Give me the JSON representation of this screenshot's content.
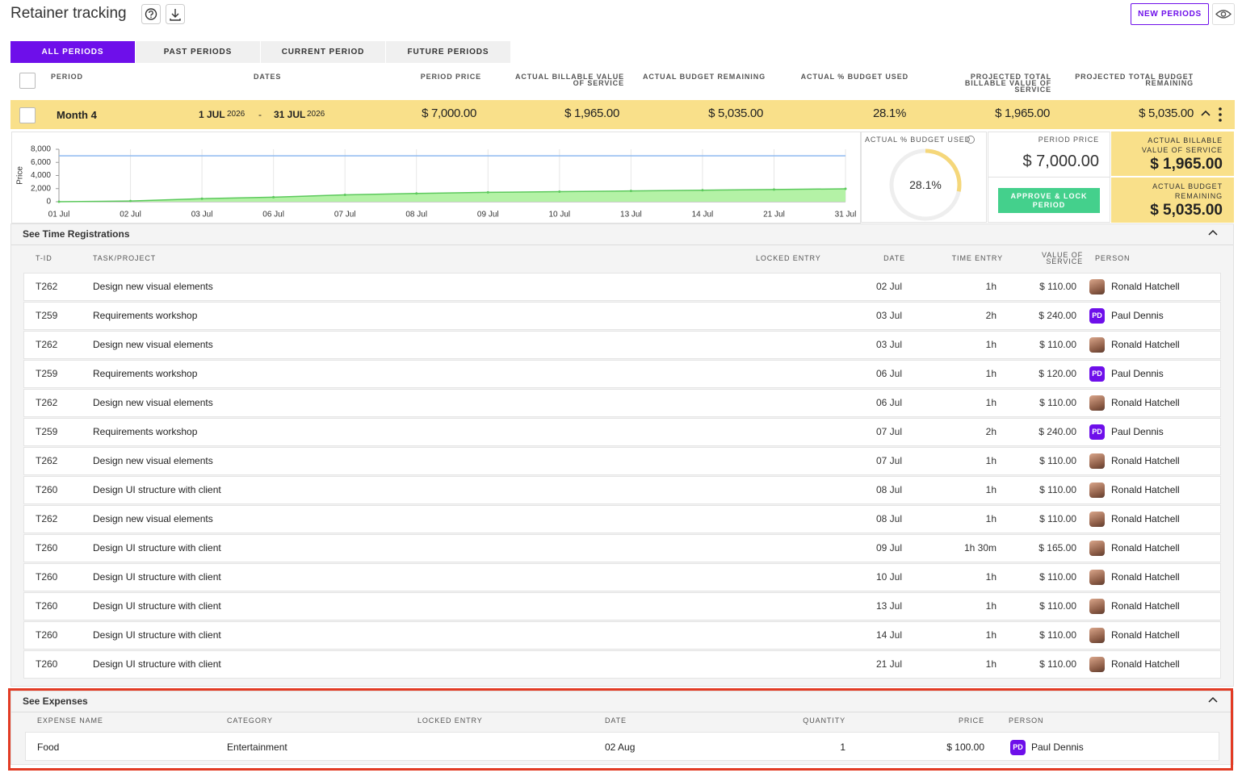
{
  "header": {
    "title": "Retainer tracking",
    "new_periods": "NEW PERIODS"
  },
  "tabs": [
    "ALL PERIODS",
    "PAST PERIODS",
    "CURRENT PERIOD",
    "FUTURE PERIODS"
  ],
  "columns": [
    "PERIOD",
    "DATES",
    "PERIOD PRICE",
    "ACTUAL BILLABLE VALUE OF SERVICE",
    "ACTUAL BUDGET REMAINING",
    "ACTUAL % BUDGET USED",
    "PROJECTED TOTAL BILLABLE VALUE OF SERVICE",
    "PROJECTED TOTAL BUDGET REMAINING"
  ],
  "period": {
    "name": "Month 4",
    "start_day": "1 JUL",
    "start_year": "2026",
    "separator": "-",
    "end_day": "31 JUL",
    "end_year": "2026",
    "price": "$ 7,000.00",
    "actual_billable": "$ 1,965.00",
    "actual_remaining": "$ 5,035.00",
    "actual_pct": "28.1%",
    "projected_billable": "$ 1,965.00",
    "projected_remaining": "$ 5,035.00"
  },
  "chart_data": {
    "type": "line",
    "y_label": "Price",
    "categories": [
      "01 Jul",
      "02 Jul",
      "03 Jul",
      "06 Jul",
      "07 Jul",
      "08 Jul",
      "09 Jul",
      "10 Jul",
      "13 Jul",
      "14 Jul",
      "21 Jul",
      "31 Jul"
    ],
    "series": [
      {
        "color": "#8fbaf0",
        "values": [
          7000,
          7000,
          7000,
          7000,
          7000,
          7000,
          7000,
          7000,
          7000,
          7000,
          7000,
          7000
        ]
      },
      {
        "color": "#5cc95c",
        "fill": "#b4f2a6",
        "values": [
          0,
          110,
          460,
          690,
          1040,
          1260,
          1425,
          1535,
          1645,
          1755,
          1865,
          1965
        ]
      }
    ],
    "ylim": [
      0,
      8000
    ],
    "yticks": [
      0,
      {
        "value": 2000,
        "label": "2,000"
      },
      {
        "value": 4000,
        "label": "4,000"
      },
      {
        "value": 6000,
        "label": "6,000"
      },
      {
        "value": 8000,
        "label": "8,000"
      }
    ],
    "grid": true
  },
  "gauge": {
    "label": "ACTUAL % BUDGET USED",
    "value": 28.1,
    "value_label": "28.1%"
  },
  "summary": {
    "price_label": "PERIOD PRICE",
    "price": "$ 7,000.00",
    "approve": "APPROVE & LOCK PERIOD",
    "billable_label": "ACTUAL BILLABLE VALUE OF SERVICE",
    "billable": "$ 1,965.00",
    "remaining_label": "ACTUAL BUDGET REMAINING",
    "remaining": "$ 5,035.00"
  },
  "time_registrations": {
    "title": "See Time Registrations",
    "columns": [
      "T-ID",
      "TASK/PROJECT",
      "LOCKED ENTRY",
      "DATE",
      "TIME ENTRY",
      "VALUE OF SERVICE",
      "PERSON"
    ],
    "rows": [
      {
        "id": "T262",
        "task": "Design new visual elements",
        "date": "02 Jul",
        "time": "1h",
        "value": "$ 110.00",
        "person": "Ronald Hatchell"
      },
      {
        "id": "T259",
        "task": "Requirements workshop",
        "date": "03 Jul",
        "time": "2h",
        "value": "$ 240.00",
        "initials": "PD",
        "person": "Paul Dennis"
      },
      {
        "id": "T262",
        "task": "Design new visual elements",
        "date": "03 Jul",
        "time": "1h",
        "value": "$ 110.00",
        "person": "Ronald Hatchell"
      },
      {
        "id": "T259",
        "task": "Requirements workshop",
        "date": "06 Jul",
        "time": "1h",
        "value": "$ 120.00",
        "initials": "PD",
        "person": "Paul Dennis"
      },
      {
        "id": "T262",
        "task": "Design new visual elements",
        "date": "06 Jul",
        "time": "1h",
        "value": "$ 110.00",
        "person": "Ronald Hatchell"
      },
      {
        "id": "T259",
        "task": "Requirements workshop",
        "date": "07 Jul",
        "time": "2h",
        "value": "$ 240.00",
        "initials": "PD",
        "person": "Paul Dennis"
      },
      {
        "id": "T262",
        "task": "Design new visual elements",
        "date": "07 Jul",
        "time": "1h",
        "value": "$ 110.00",
        "person": "Ronald Hatchell"
      },
      {
        "id": "T260",
        "task": "Design UI structure with client",
        "date": "08 Jul",
        "time": "1h",
        "value": "$ 110.00",
        "person": "Ronald Hatchell"
      },
      {
        "id": "T262",
        "task": "Design new visual elements",
        "date": "08 Jul",
        "time": "1h",
        "value": "$ 110.00",
        "person": "Ronald Hatchell"
      },
      {
        "id": "T260",
        "task": "Design UI structure with client",
        "date": "09 Jul",
        "time": "1h 30m",
        "value": "$ 165.00",
        "person": "Ronald Hatchell"
      },
      {
        "id": "T260",
        "task": "Design UI structure with client",
        "date": "10 Jul",
        "time": "1h",
        "value": "$ 110.00",
        "person": "Ronald Hatchell"
      },
      {
        "id": "T260",
        "task": "Design UI structure with client",
        "date": "13 Jul",
        "time": "1h",
        "value": "$ 110.00",
        "person": "Ronald Hatchell"
      },
      {
        "id": "T260",
        "task": "Design UI structure with client",
        "date": "14 Jul",
        "time": "1h",
        "value": "$ 110.00",
        "person": "Ronald Hatchell"
      },
      {
        "id": "T260",
        "task": "Design UI structure with client",
        "date": "21 Jul",
        "time": "1h",
        "value": "$ 110.00",
        "person": "Ronald Hatchell"
      }
    ]
  },
  "expenses": {
    "title": "See Expenses",
    "columns": [
      "EXPENSE NAME",
      "CATEGORY",
      "LOCKED ENTRY",
      "DATE",
      "QUANTITY",
      "PRICE",
      "PERSON"
    ],
    "rows": [
      {
        "name": "Food",
        "category": "Entertainment",
        "date": "02 Aug",
        "quantity": 1,
        "price": "$ 100.00",
        "initials": "PD",
        "person": "Paul Dennis"
      }
    ]
  }
}
